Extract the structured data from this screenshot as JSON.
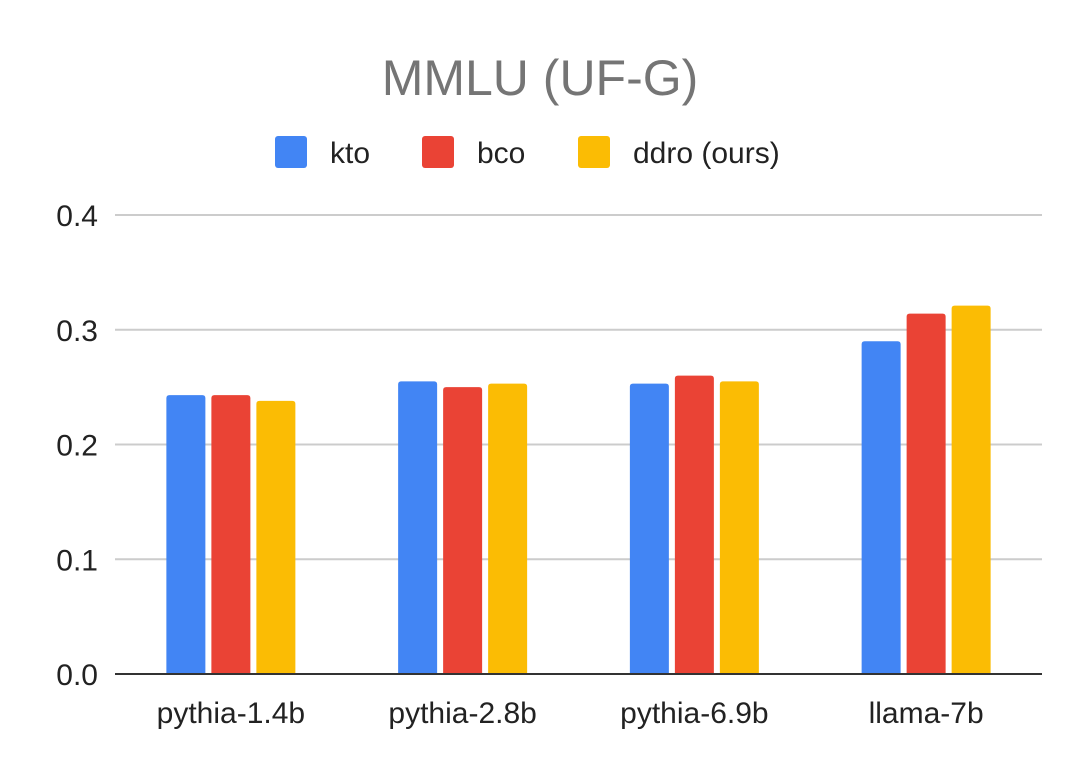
{
  "chart_data": {
    "type": "bar",
    "title": "MMLU (UF-G)",
    "xlabel": "",
    "ylabel": "",
    "categories": [
      "pythia-1.4b",
      "pythia-2.8b",
      "pythia-6.9b",
      "llama-7b"
    ],
    "series": [
      {
        "name": "kto",
        "color": "#4285F4",
        "values": [
          0.243,
          0.255,
          0.253,
          0.29
        ]
      },
      {
        "name": "bco",
        "color": "#EA4335",
        "values": [
          0.243,
          0.25,
          0.26,
          0.314
        ]
      },
      {
        "name": "ddro (ours)",
        "color": "#FBBC04",
        "values": [
          0.238,
          0.253,
          0.255,
          0.321
        ]
      }
    ],
    "ylim": [
      0,
      0.4
    ],
    "yticks": [
      "0.0",
      "0.1",
      "0.2",
      "0.3",
      "0.4"
    ],
    "grid": true,
    "legend_position": "top"
  }
}
